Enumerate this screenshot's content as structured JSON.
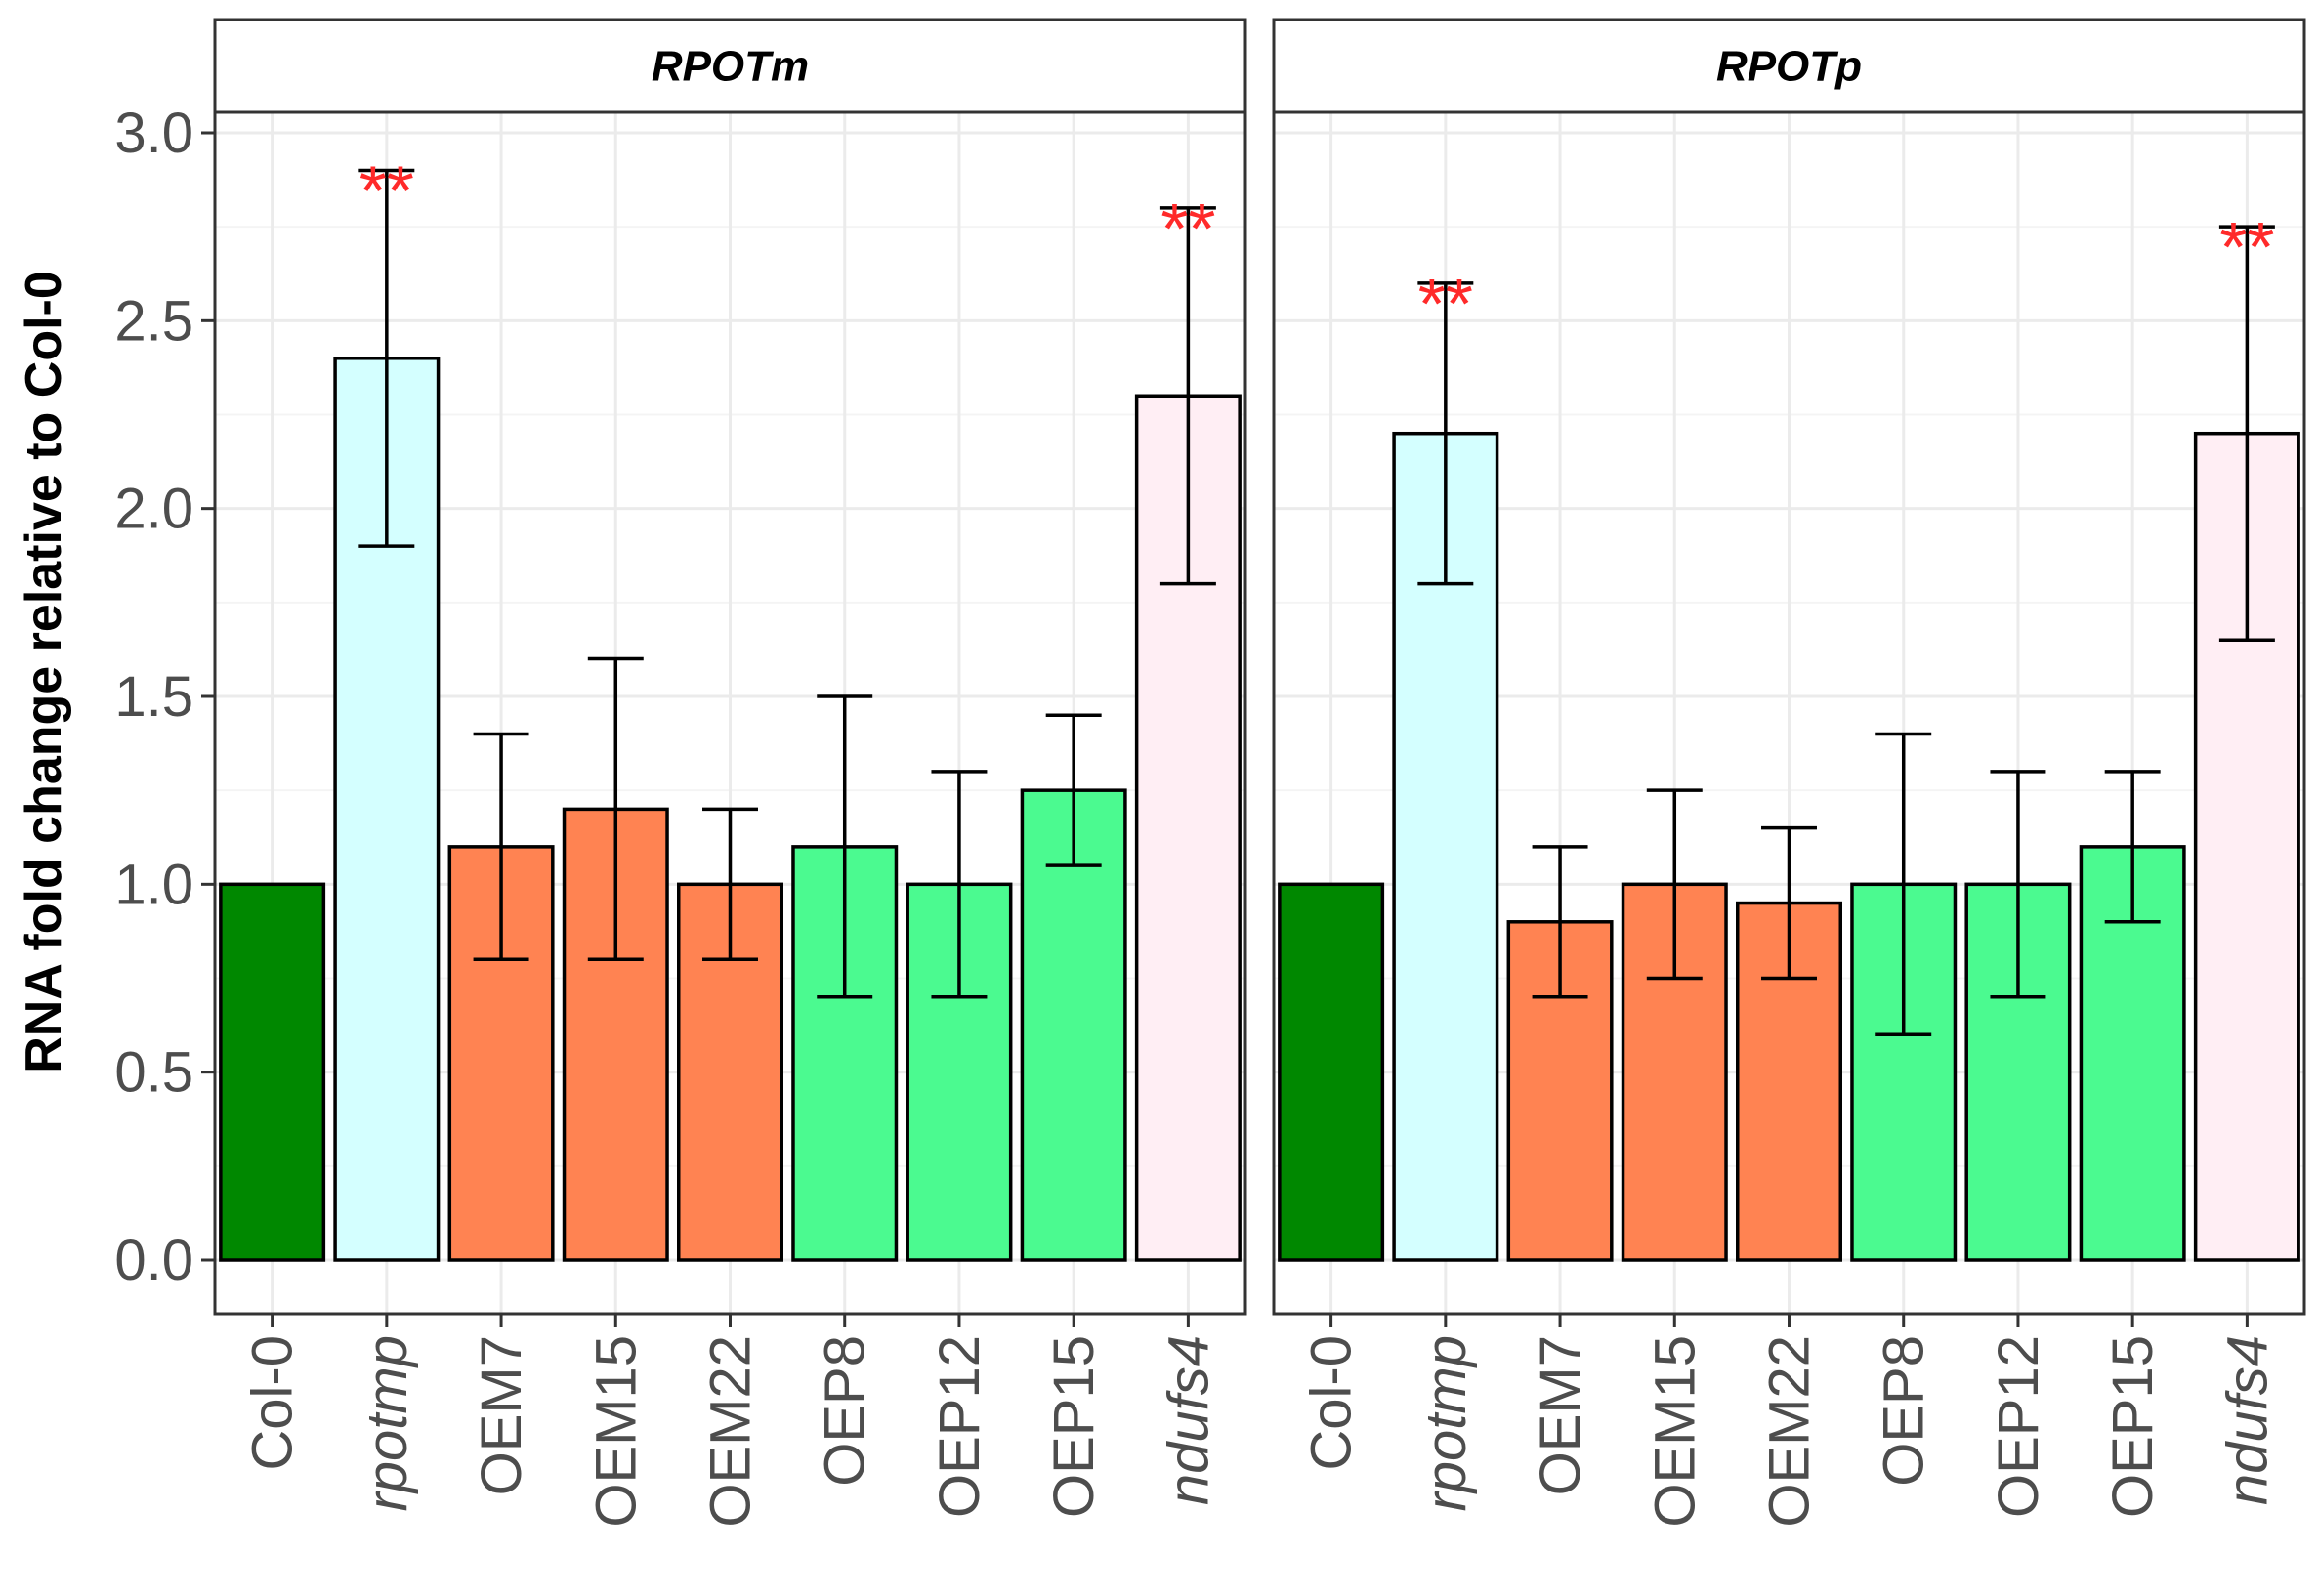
{
  "chart_data": {
    "type": "bar",
    "ylabel": "RNA fold change relative to Col-0",
    "xlabel": "",
    "ylim": [
      0,
      3.0
    ],
    "y_ticks": [
      "0.0",
      "0.5",
      "1.0",
      "1.5",
      "2.0",
      "2.5",
      "3.0"
    ],
    "y_tick_values": [
      0,
      0.5,
      1.0,
      1.5,
      2.0,
      2.5,
      3.0
    ],
    "grid": true,
    "legend": "none",
    "categories": [
      "Col-0",
      "rpotmp",
      "OEM7",
      "OEM15",
      "OEM22",
      "OEP8",
      "OEP12",
      "OEP15",
      "ndufs4"
    ],
    "italic_categories": [
      "rpotmp",
      "ndufs4"
    ],
    "bar_colors": [
      "#008800",
      "#d4ffff",
      "#ff8352",
      "#ff8352",
      "#ff8352",
      "#4bfa90",
      "#4bfa90",
      "#4bfa90",
      "#ffeef4"
    ],
    "panels": [
      {
        "title": "RPOTm",
        "values": [
          1.0,
          2.4,
          1.1,
          1.2,
          1.0,
          1.1,
          1.0,
          1.25,
          2.3
        ],
        "err_low": [
          1.0,
          1.9,
          0.8,
          0.8,
          0.8,
          0.7,
          0.7,
          1.05,
          1.8
        ],
        "err_high": [
          1.0,
          2.9,
          1.4,
          1.6,
          1.2,
          1.5,
          1.3,
          1.45,
          2.8
        ],
        "significance": [
          "",
          "**",
          "",
          "",
          "",
          "",
          "",
          "",
          "**"
        ]
      },
      {
        "title": "RPOTp",
        "values": [
          1.0,
          2.2,
          0.9,
          1.0,
          0.95,
          1.0,
          1.0,
          1.1,
          2.2
        ],
        "err_low": [
          1.0,
          1.8,
          0.7,
          0.75,
          0.75,
          0.6,
          0.7,
          0.9,
          1.65
        ],
        "err_high": [
          1.0,
          2.6,
          1.1,
          1.25,
          1.15,
          1.4,
          1.3,
          1.3,
          2.75
        ],
        "significance": [
          "",
          "**",
          "",
          "",
          "",
          "",
          "",
          "",
          "**"
        ]
      }
    ],
    "colors": {
      "panel_border": "#333333",
      "grid_major": "#ebebeb",
      "grid_minor": "#f4f4f4",
      "strip_fill": "#ffffff",
      "significance": "#ff2a2a",
      "bar_stroke": "#000000"
    }
  }
}
